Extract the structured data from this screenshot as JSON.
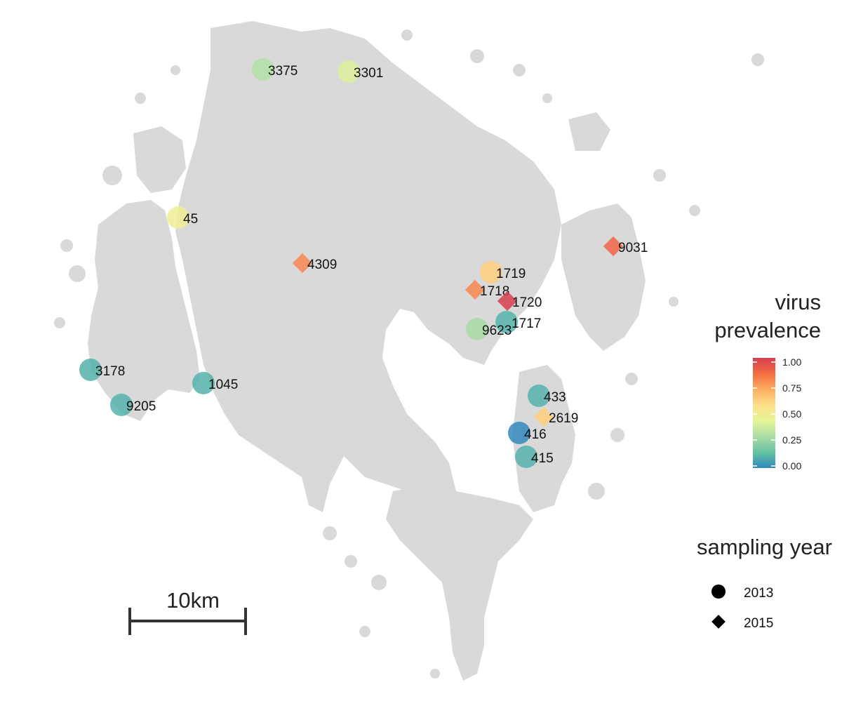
{
  "map": {
    "land_color": "#d9d9d9",
    "scale_bar_label": "10km"
  },
  "legend": {
    "prevalence_title_line1": "virus",
    "prevalence_title_line2": "prevalence",
    "ticks": [
      "1.00",
      "0.75",
      "0.50",
      "0.25",
      "0.00"
    ],
    "colorbar_stops": [
      "#d53e4f",
      "#f46d43",
      "#fdae61",
      "#fee08b",
      "#e6f598",
      "#abdda4",
      "#66c2a5",
      "#3288bd"
    ],
    "year_title": "sampling year",
    "years": [
      {
        "label": "2013",
        "shape": "circle"
      },
      {
        "label": "2015",
        "shape": "diamond"
      }
    ]
  },
  "sites": [
    {
      "id": "3375",
      "year": 2013,
      "prevalence": 0.3
    },
    {
      "id": "3301",
      "year": 2013,
      "prevalence": 0.4
    },
    {
      "id": "45",
      "year": 2013,
      "prevalence": 0.47
    },
    {
      "id": "4309",
      "year": 2015,
      "prevalence": 0.8
    },
    {
      "id": "1719",
      "year": 2013,
      "prevalence": 0.62
    },
    {
      "id": "1718",
      "year": 2015,
      "prevalence": 0.8
    },
    {
      "id": "1720",
      "year": 2015,
      "prevalence": 1.0
    },
    {
      "id": "1717",
      "year": 2013,
      "prevalence": 0.1
    },
    {
      "id": "9623",
      "year": 2013,
      "prevalence": 0.28
    },
    {
      "id": "9031",
      "year": 2015,
      "prevalence": 0.88
    },
    {
      "id": "3178",
      "year": 2013,
      "prevalence": 0.1
    },
    {
      "id": "9205",
      "year": 2013,
      "prevalence": 0.1
    },
    {
      "id": "1045",
      "year": 2013,
      "prevalence": 0.1
    },
    {
      "id": "433",
      "year": 2013,
      "prevalence": 0.1
    },
    {
      "id": "2619",
      "year": 2015,
      "prevalence": 0.62
    },
    {
      "id": "416",
      "year": 2013,
      "prevalence": 0.0
    },
    {
      "id": "415",
      "year": 2013,
      "prevalence": 0.1
    }
  ]
}
